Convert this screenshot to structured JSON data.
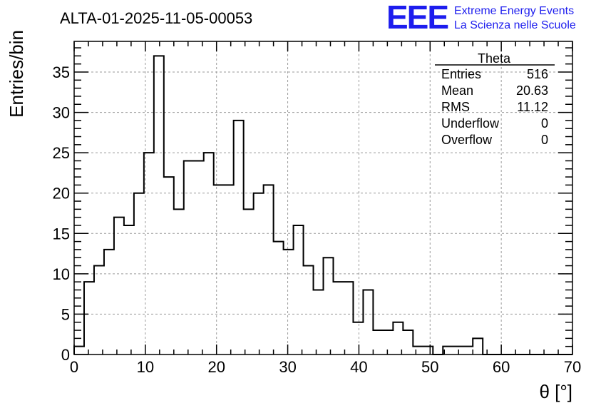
{
  "chart_data": {
    "type": "histogram",
    "title": "ALTA-01-2025-11-05-00053",
    "xlabel": "θ [°]",
    "ylabel": "Entries/bin",
    "xlim": [
      0,
      70
    ],
    "ylim": [
      0,
      38.8
    ],
    "grid": true,
    "bin_width": 1.4,
    "bin_edges_start": 0,
    "bin_contents": [
      1,
      9,
      11,
      13,
      17,
      16,
      20,
      25,
      37,
      22,
      18,
      24,
      24,
      25,
      21,
      21,
      29,
      18,
      20,
      21,
      14,
      13,
      16,
      11,
      8,
      12,
      9,
      9,
      4,
      8,
      3,
      3,
      4,
      3,
      1,
      1,
      0,
      1,
      1,
      1,
      2,
      0,
      0,
      0,
      0,
      0,
      0,
      0,
      0,
      0
    ],
    "x_ticks": [
      0,
      10,
      20,
      30,
      40,
      50,
      60,
      70
    ],
    "y_ticks": [
      0,
      5,
      10,
      15,
      20,
      25,
      30,
      35
    ],
    "stats_box": {
      "name": "Theta",
      "placement": "top-right",
      "rows": [
        {
          "label": "Entries",
          "value": "516"
        },
        {
          "label": "Mean",
          "value": "20.63"
        },
        {
          "label": "RMS",
          "value": "11.12"
        },
        {
          "label": "Underflow",
          "value": "0"
        },
        {
          "label": "Overflow",
          "value": "0"
        }
      ]
    }
  },
  "logo": {
    "mark": "EEE",
    "line1": "Extreme Energy Events",
    "line2": "La Scienza nelle Scuole",
    "color": "#1d1dee"
  }
}
